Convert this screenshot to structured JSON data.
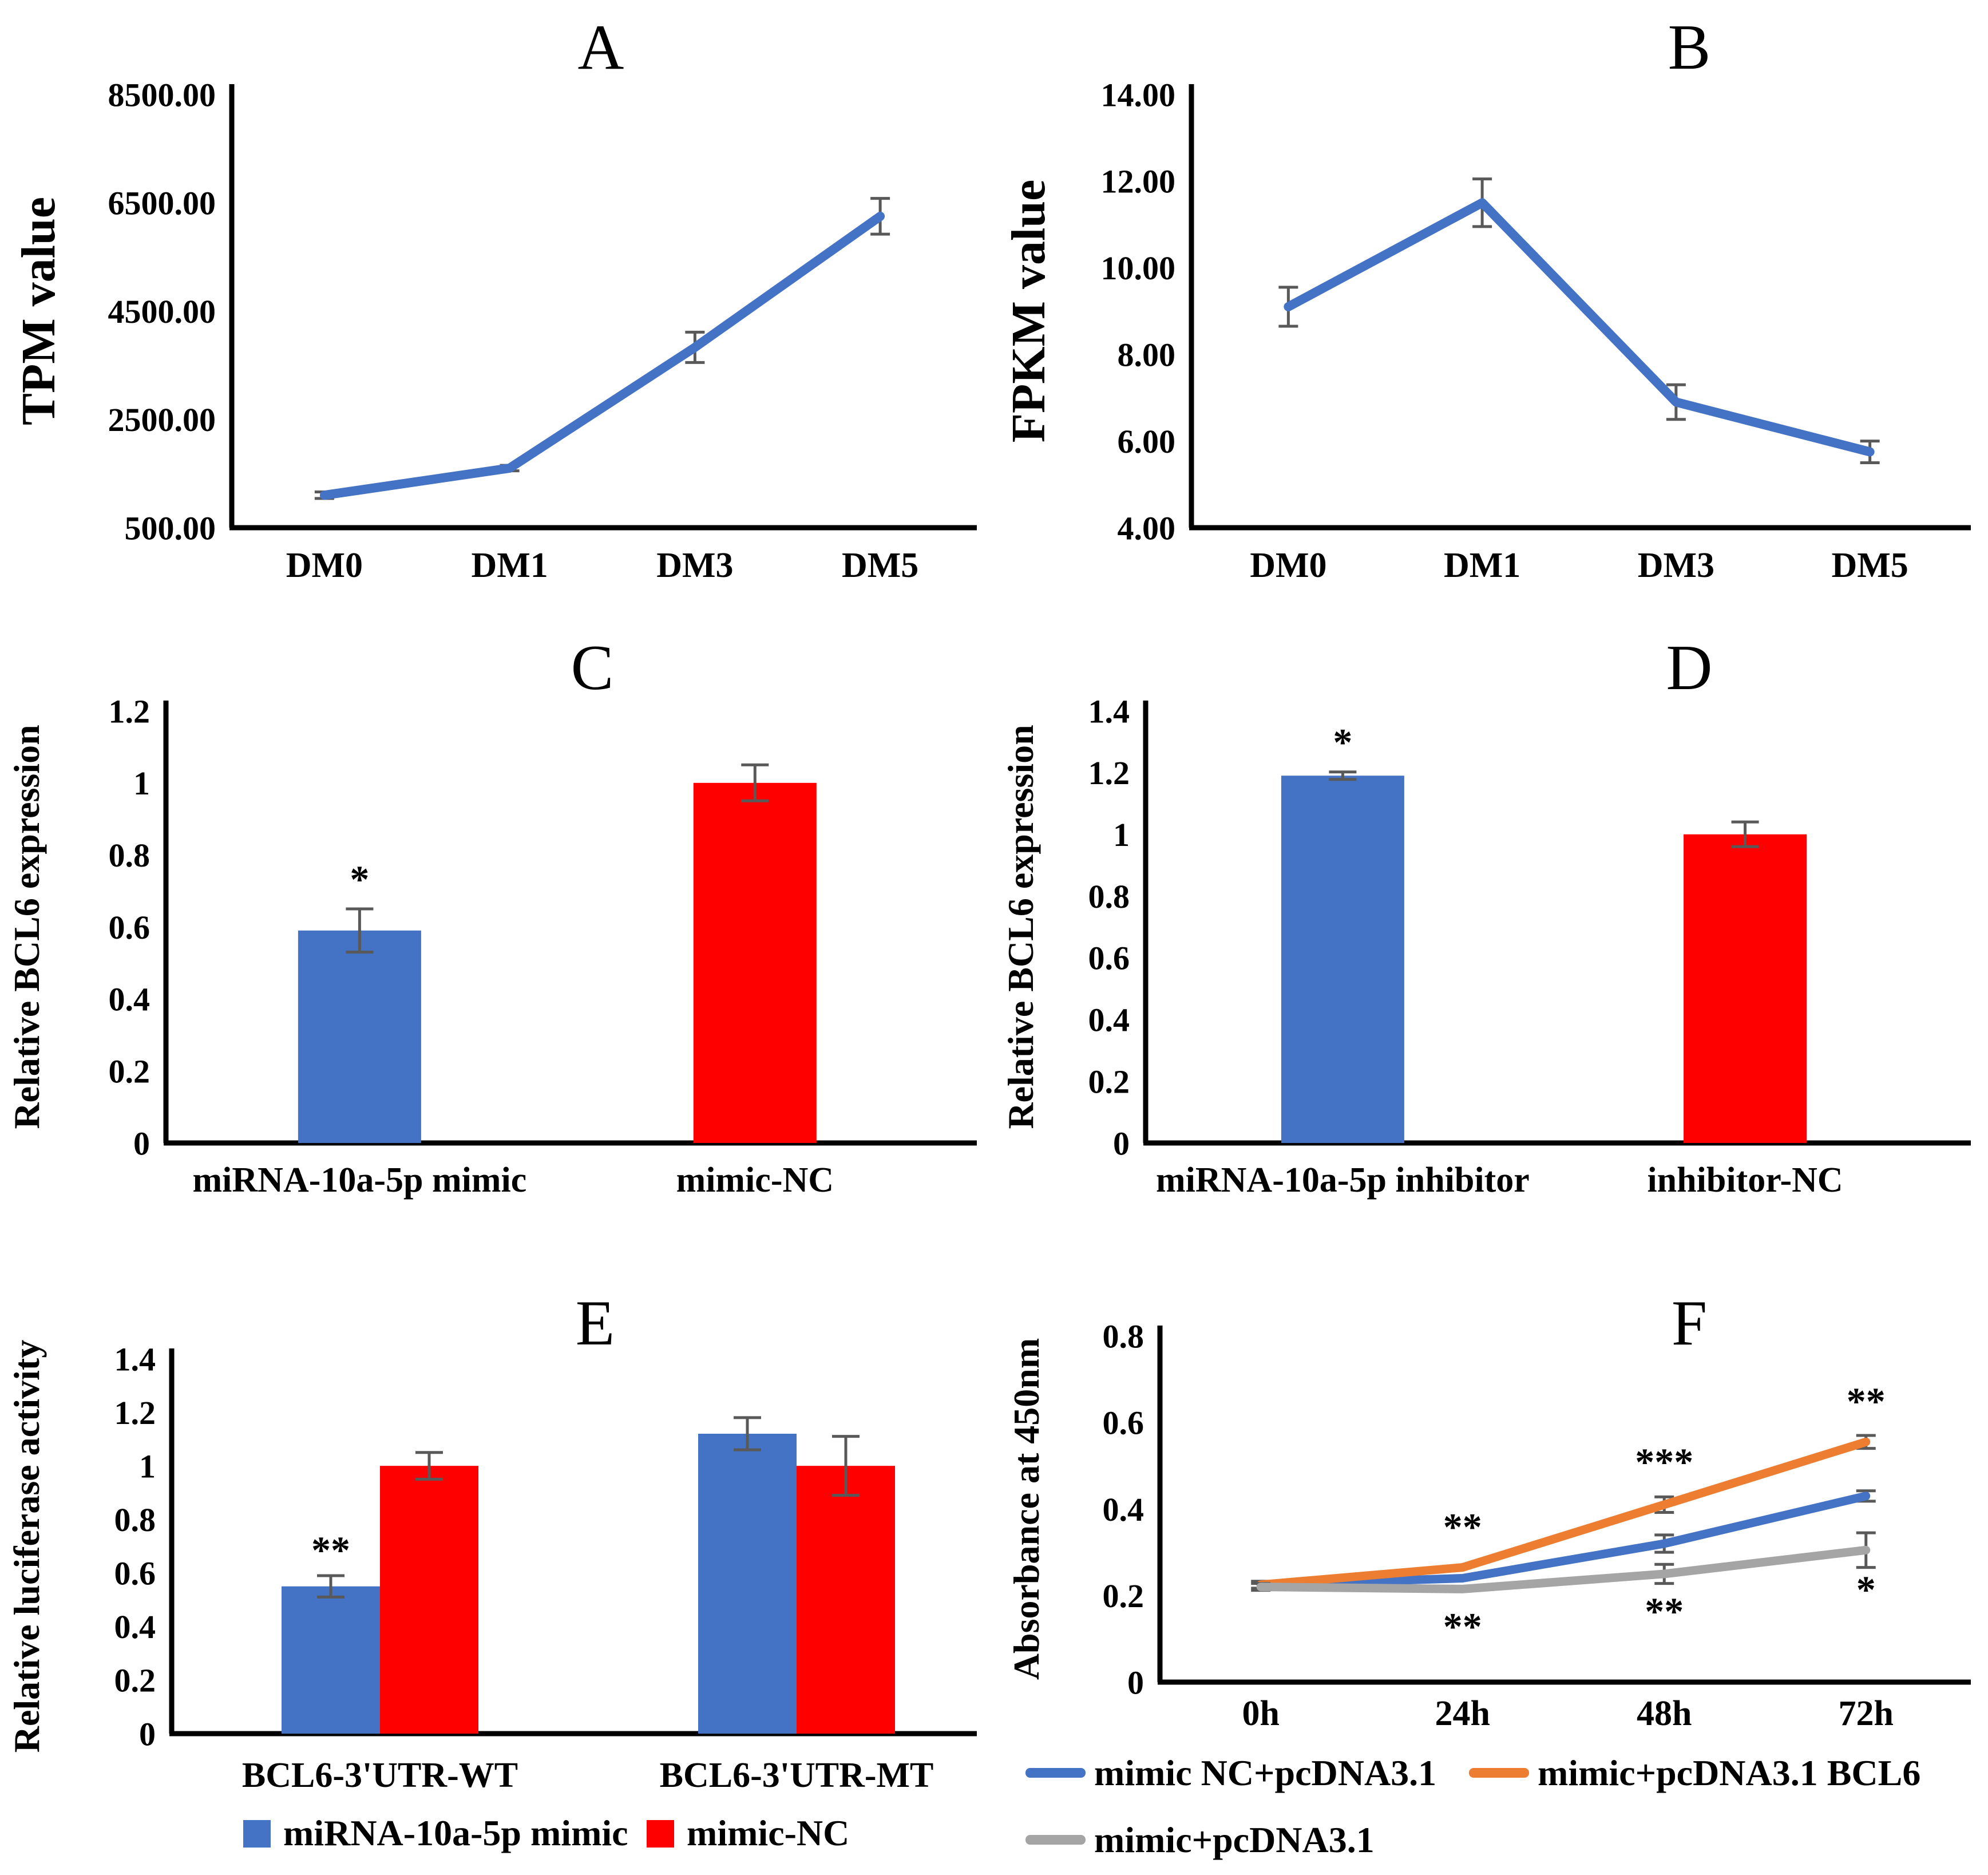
{
  "page": {
    "background": "#ffffff"
  },
  "colors": {
    "blue": "#4472C4",
    "red": "#FF0000",
    "orange": "#ED7D31",
    "gray": "#A5A5A5",
    "error_bar": "#595959",
    "axis": "#000000",
    "sig": "#3F3F3F"
  },
  "chart_data": [
    {
      "panel": "A",
      "type": "line",
      "title": "A",
      "ylabel": "TPM value",
      "categories": [
        "DM0",
        "DM1",
        "DM3",
        "DM5"
      ],
      "ymin": 500,
      "ymax": 8500,
      "ytick_step": 2000,
      "tick_format": "fixed2",
      "grid": false,
      "series": [
        {
          "name": "TPM",
          "color_key": "blue",
          "values": [
            1100,
            1600,
            3830,
            6250
          ],
          "errors": [
            60,
            50,
            280,
            330
          ]
        }
      ]
    },
    {
      "panel": "B",
      "type": "line",
      "title": "B",
      "ylabel": "FPKM value",
      "categories": [
        "DM0",
        "DM1",
        "DM3",
        "DM5"
      ],
      "ymin": 4,
      "ymax": 14,
      "ytick_step": 2,
      "tick_format": "fixed2",
      "grid": false,
      "series": [
        {
          "name": "FPKM",
          "color_key": "blue",
          "values": [
            9.1,
            11.5,
            6.9,
            5.75
          ],
          "errors": [
            0.45,
            0.55,
            0.4,
            0.25
          ]
        }
      ]
    },
    {
      "panel": "C",
      "type": "bar",
      "title": "C",
      "ylabel": "Relative BCL6 expression",
      "ymin": 0,
      "ymax": 1.2,
      "ytick_step": 0.2,
      "tick_format": "auto",
      "grid": false,
      "bars": [
        {
          "label": "miRNA-10a-5p mimic",
          "color_key": "blue",
          "value": 0.59,
          "error": 0.06,
          "sig": "*"
        },
        {
          "label": "mimic-NC",
          "color_key": "red",
          "value": 1.0,
          "error": 0.05,
          "sig": ""
        }
      ]
    },
    {
      "panel": "D",
      "type": "bar",
      "title": "D",
      "ylabel": "Relative BCL6 expression",
      "ymin": 0,
      "ymax": 1.4,
      "ytick_step": 0.2,
      "tick_format": "auto",
      "grid": false,
      "bars": [
        {
          "label": "miRNA-10a-5p inhibitor",
          "color_key": "blue",
          "value": 1.19,
          "error": 0.012,
          "sig": "*"
        },
        {
          "label": "inhibitor-NC",
          "color_key": "red",
          "value": 1.0,
          "error": 0.04,
          "sig": ""
        }
      ]
    },
    {
      "panel": "E",
      "type": "grouped_bar",
      "title": "E",
      "ylabel": "Relative luciferase activity",
      "groups": [
        "BCL6-3'UTR-WT",
        "BCL6-3'UTR-MT"
      ],
      "ymin": 0,
      "ymax": 1.4,
      "ytick_step": 0.2,
      "tick_format": "auto",
      "grid": false,
      "series": [
        {
          "name": "miRNA-10a-5p mimic",
          "color_key": "blue",
          "values": [
            0.55,
            1.12
          ],
          "errors": [
            0.04,
            0.06
          ],
          "sig": [
            "**",
            ""
          ]
        },
        {
          "name": "mimic-NC",
          "color_key": "red",
          "values": [
            1.0,
            1.0
          ],
          "errors": [
            0.05,
            0.11
          ],
          "sig": [
            "",
            ""
          ]
        }
      ],
      "legend": {
        "style": "squares",
        "items": [
          {
            "color_key": "blue",
            "label": "miRNA-10a-5p mimic"
          },
          {
            "color_key": "red",
            "label": "mimic-NC"
          }
        ]
      }
    },
    {
      "panel": "F",
      "type": "line",
      "title": "F",
      "ylabel": "Absorbance at 450nm",
      "categories": [
        "0h",
        "24h",
        "48h",
        "72h"
      ],
      "ymin": 0,
      "ymax": 0.8,
      "ytick_step": 0.2,
      "tick_format": "auto",
      "grid": false,
      "series": [
        {
          "name": "mimic NC+pcDNA3.1",
          "color_key": "blue",
          "values": [
            0.225,
            0.24,
            0.32,
            0.43
          ],
          "errors": [
            0.008,
            0,
            0.02,
            0.012
          ]
        },
        {
          "name": "mimic+pcDNA3.1 BCL6",
          "color_key": "orange",
          "values": [
            0.225,
            0.265,
            0.41,
            0.555
          ],
          "errors": [
            0,
            0,
            0.018,
            0.015
          ]
        },
        {
          "name": "mimic+pcDNA3.1",
          "color_key": "gray",
          "values": [
            0.22,
            0.215,
            0.25,
            0.305
          ],
          "errors": [
            0.008,
            0,
            0.022,
            0.04
          ]
        }
      ],
      "annotations": [
        {
          "x": 1,
          "y": 0.36,
          "text": "**"
        },
        {
          "x": 1,
          "y": 0.13,
          "text": "**"
        },
        {
          "x": 2,
          "y": 0.51,
          "text": "***"
        },
        {
          "x": 2,
          "y": 0.165,
          "text": "**"
        },
        {
          "x": 3,
          "y": 0.65,
          "text": "**"
        },
        {
          "x": 3,
          "y": 0.215,
          "text": "*"
        }
      ],
      "legend": {
        "style": "lines",
        "rows": [
          [
            {
              "color_key": "blue",
              "label": "mimic NC+pcDNA3.1"
            },
            {
              "color_key": "orange",
              "label": "mimic+pcDNA3.1 BCL6"
            }
          ],
          [
            {
              "color_key": "gray",
              "label": "mimic+pcDNA3.1"
            }
          ]
        ]
      }
    }
  ]
}
